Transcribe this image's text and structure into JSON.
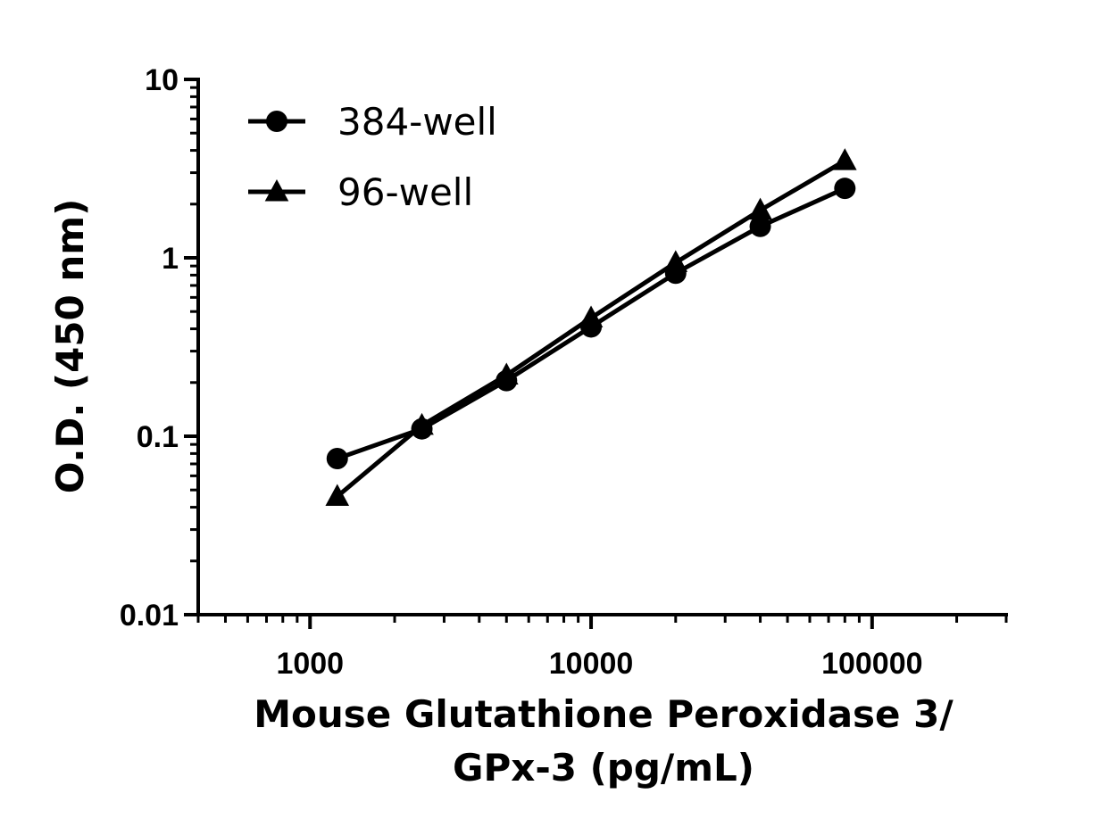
{
  "chart_data": {
    "type": "line",
    "xscale": "log",
    "yscale": "log",
    "xlim": [
      400,
      300000
    ],
    "ylim": [
      0.01,
      10
    ],
    "xticks": [
      1000,
      10000,
      100000
    ],
    "xtick_labels": [
      "1000",
      "10000",
      "100000"
    ],
    "yticks": [
      0.01,
      0.1,
      1,
      10
    ],
    "ytick_labels": [
      "0.01",
      "0.1",
      "1",
      "10"
    ],
    "xlabel_lines": [
      "Mouse Glutathione Peroxidase 3/",
      "GPx-3 (pg/mL)"
    ],
    "ylabel": "O.D. (450 nm)",
    "grid": false,
    "legend_position": "top-left",
    "series": [
      {
        "name": "384-well",
        "marker": "circle",
        "color": "#000000",
        "x": [
          1250,
          2500,
          5000,
          10000,
          20000,
          40000,
          80000
        ],
        "y": [
          0.075,
          0.11,
          0.205,
          0.41,
          0.82,
          1.5,
          2.45
        ]
      },
      {
        "name": "96-well",
        "marker": "triangle",
        "color": "#000000",
        "x": [
          1250,
          2500,
          5000,
          10000,
          20000,
          40000,
          80000
        ],
        "y": [
          0.046,
          0.115,
          0.22,
          0.46,
          0.94,
          1.85,
          3.5
        ]
      }
    ]
  }
}
